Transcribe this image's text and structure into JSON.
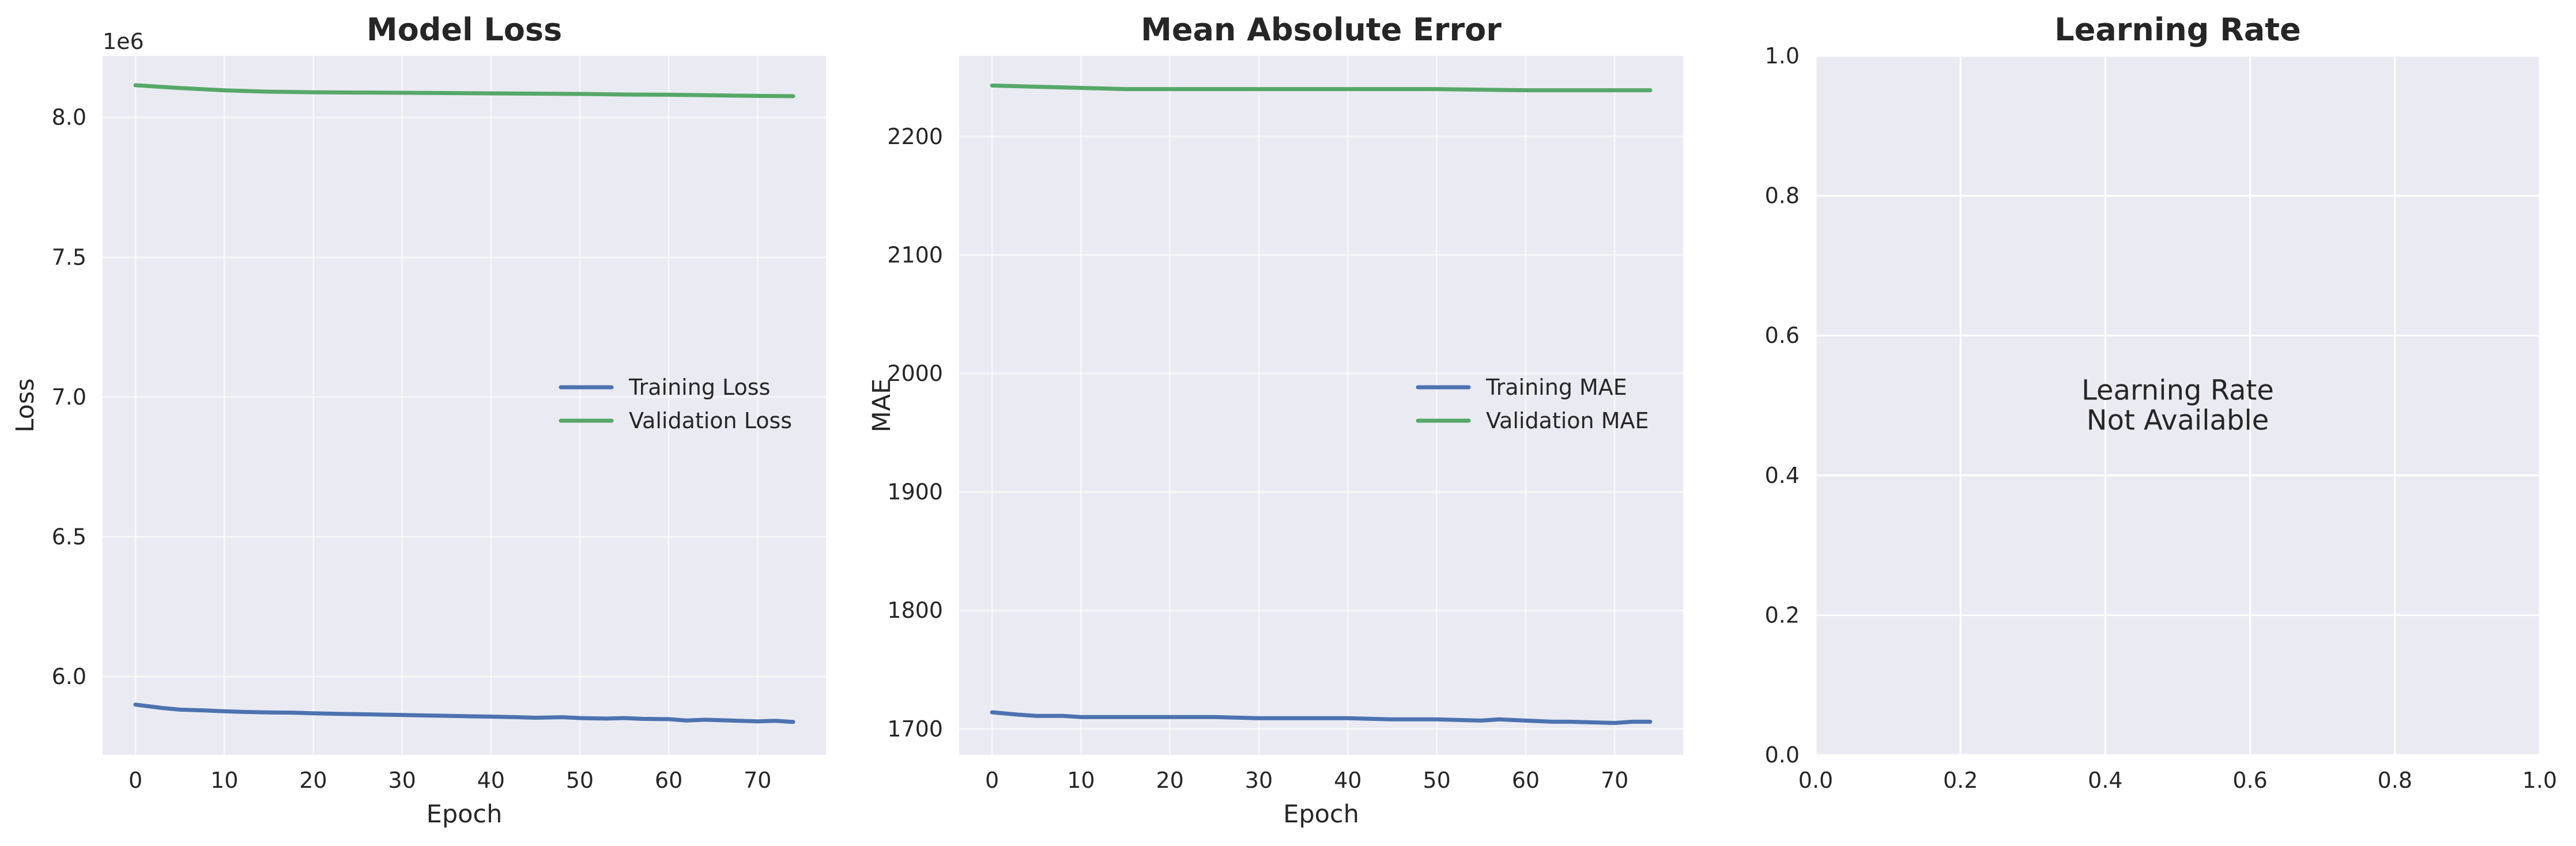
{
  "chart_data": [
    {
      "type": "line",
      "title": "Model Loss",
      "xlabel": "Epoch",
      "ylabel": "Loss",
      "y_offset_label": "1e6",
      "xlim": [
        -3.7,
        77.7
      ],
      "ylim": [
        5.72,
        8.22
      ],
      "x_ticks": [
        0,
        10,
        20,
        30,
        40,
        50,
        60,
        70
      ],
      "y_ticks": [
        6.0,
        6.5,
        7.0,
        7.5,
        8.0
      ],
      "y_tick_labels": [
        "6.0",
        "6.5",
        "7.0",
        "7.5",
        "8.0"
      ],
      "grid": true,
      "legend_position": "center-right",
      "series": [
        {
          "name": "Training Loss",
          "color": "#4c72b0",
          "points": [
            [
              0,
              5.9
            ],
            [
              3,
              5.888
            ],
            [
              5,
              5.882
            ],
            [
              8,
              5.879
            ],
            [
              10,
              5.876
            ],
            [
              12,
              5.874
            ],
            [
              15,
              5.872
            ],
            [
              18,
              5.871
            ],
            [
              20,
              5.869
            ],
            [
              23,
              5.867
            ],
            [
              25,
              5.866
            ],
            [
              28,
              5.864
            ],
            [
              30,
              5.863
            ],
            [
              33,
              5.861
            ],
            [
              35,
              5.86
            ],
            [
              38,
              5.858
            ],
            [
              40,
              5.857
            ],
            [
              43,
              5.855
            ],
            [
              45,
              5.853
            ],
            [
              48,
              5.855
            ],
            [
              50,
              5.852
            ],
            [
              53,
              5.85
            ],
            [
              55,
              5.852
            ],
            [
              57,
              5.849
            ],
            [
              60,
              5.848
            ],
            [
              62,
              5.843
            ],
            [
              64,
              5.846
            ],
            [
              67,
              5.843
            ],
            [
              70,
              5.84
            ],
            [
              72,
              5.842
            ],
            [
              74,
              5.838
            ]
          ]
        },
        {
          "name": "Validation Loss",
          "color": "#55a868",
          "points": [
            [
              0,
              8.115
            ],
            [
              5,
              8.105
            ],
            [
              10,
              8.097
            ],
            [
              15,
              8.092
            ],
            [
              20,
              8.09
            ],
            [
              25,
              8.089
            ],
            [
              30,
              8.088
            ],
            [
              35,
              8.087
            ],
            [
              40,
              8.086
            ],
            [
              45,
              8.085
            ],
            [
              50,
              8.084
            ],
            [
              55,
              8.082
            ],
            [
              60,
              8.081
            ],
            [
              65,
              8.079
            ],
            [
              70,
              8.077
            ],
            [
              74,
              8.076
            ]
          ]
        }
      ]
    },
    {
      "type": "line",
      "title": "Mean Absolute Error",
      "xlabel": "Epoch",
      "ylabel": "MAE",
      "xlim": [
        -3.7,
        77.7
      ],
      "ylim": [
        1678,
        2268
      ],
      "x_ticks": [
        0,
        10,
        20,
        30,
        40,
        50,
        60,
        70
      ],
      "y_ticks": [
        1700,
        1800,
        1900,
        2000,
        2100,
        2200
      ],
      "y_tick_labels": [
        "1700",
        "1800",
        "1900",
        "2000",
        "2100",
        "2200"
      ],
      "grid": true,
      "legend_position": "center-right",
      "series": [
        {
          "name": "Training MAE",
          "color": "#4c72b0",
          "points": [
            [
              0,
              1714
            ],
            [
              3,
              1712
            ],
            [
              5,
              1711
            ],
            [
              8,
              1711
            ],
            [
              10,
              1710
            ],
            [
              15,
              1710
            ],
            [
              20,
              1710
            ],
            [
              25,
              1710
            ],
            [
              30,
              1709
            ],
            [
              35,
              1709
            ],
            [
              40,
              1709
            ],
            [
              45,
              1708
            ],
            [
              50,
              1708
            ],
            [
              55,
              1707
            ],
            [
              57,
              1708
            ],
            [
              60,
              1707
            ],
            [
              63,
              1706
            ],
            [
              65,
              1706
            ],
            [
              70,
              1705
            ],
            [
              72,
              1706
            ],
            [
              74,
              1706
            ]
          ]
        },
        {
          "name": "Validation MAE",
          "color": "#55a868",
          "points": [
            [
              0,
              2243
            ],
            [
              5,
              2242
            ],
            [
              10,
              2241
            ],
            [
              15,
              2240
            ],
            [
              20,
              2240
            ],
            [
              30,
              2240
            ],
            [
              40,
              2240
            ],
            [
              50,
              2240
            ],
            [
              60,
              2239
            ],
            [
              70,
              2239
            ],
            [
              74,
              2239
            ]
          ]
        }
      ]
    },
    {
      "type": "line",
      "title": "Learning Rate",
      "xlabel": "",
      "ylabel": "",
      "xlim": [
        0,
        1
      ],
      "ylim": [
        0,
        1
      ],
      "x_ticks": [
        0.0,
        0.2,
        0.4,
        0.6,
        0.8,
        1.0
      ],
      "x_tick_labels": [
        "0.0",
        "0.2",
        "0.4",
        "0.6",
        "0.8",
        "1.0"
      ],
      "y_ticks": [
        0.0,
        0.2,
        0.4,
        0.6,
        0.8,
        1.0
      ],
      "y_tick_labels": [
        "0.0",
        "0.2",
        "0.4",
        "0.6",
        "0.8",
        "1.0"
      ],
      "grid": true,
      "annotation": [
        "Learning Rate",
        "Not Available"
      ],
      "series": []
    }
  ],
  "style": {
    "axes_background": "#eaeaf2",
    "grid_color": "#ffffff",
    "text_color": "#262626"
  }
}
